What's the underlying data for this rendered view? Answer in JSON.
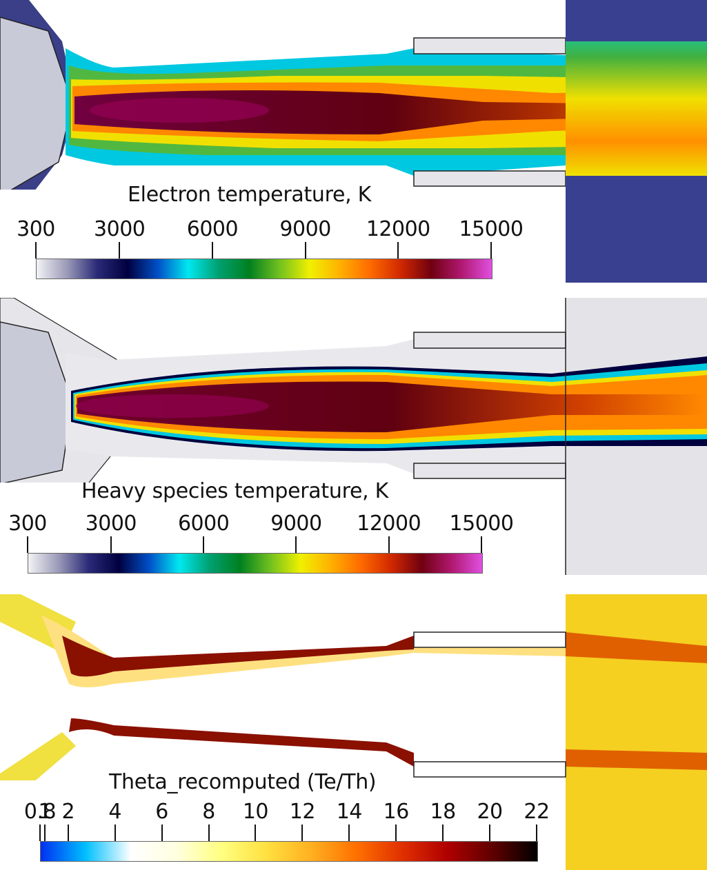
{
  "panels": [
    {
      "id": "electron",
      "title": "Electron temperature, K",
      "ticks": [
        "300",
        "3000",
        "6000",
        "9000",
        "12000",
        "15000"
      ],
      "colormap": [
        "#f2f2f5",
        "#9a9ab8",
        "#2a2a78",
        "#000040",
        "#0050c8",
        "#00e8f0",
        "#00a070",
        "#008020",
        "#70c020",
        "#f0f000",
        "#ffb000",
        "#ff6a00",
        "#d02800",
        "#700010",
        "#b01870",
        "#e050e0"
      ],
      "range": [
        300,
        15000
      ]
    },
    {
      "id": "heavy",
      "title": "Heavy species temperature, K",
      "ticks": [
        "300",
        "3000",
        "6000",
        "9000",
        "12000",
        "15000"
      ],
      "colormap": [
        "#f2f2f5",
        "#9a9ab8",
        "#2a2a78",
        "#000040",
        "#0050c8",
        "#00e8f0",
        "#00a070",
        "#008020",
        "#70c020",
        "#f0f000",
        "#ffb000",
        "#ff6a00",
        "#d02800",
        "#700010",
        "#b01870",
        "#e050e0"
      ],
      "range": [
        300,
        15000
      ]
    },
    {
      "id": "theta",
      "title": "Theta_recomputed (Te/Th)",
      "ticks": [
        "0.8",
        "1",
        "2",
        "4",
        "6",
        "8",
        "10",
        "12",
        "14",
        "16",
        "18",
        "20",
        "22"
      ],
      "colormap": [
        "#0030f0",
        "#00c0ff",
        "#ffffff",
        "#ffffe0",
        "#ffff80",
        "#ffe040",
        "#ffb020",
        "#ff7000",
        "#e03000",
        "#b00000",
        "#600000",
        "#000000"
      ],
      "range": [
        0.8,
        22
      ]
    }
  ]
}
